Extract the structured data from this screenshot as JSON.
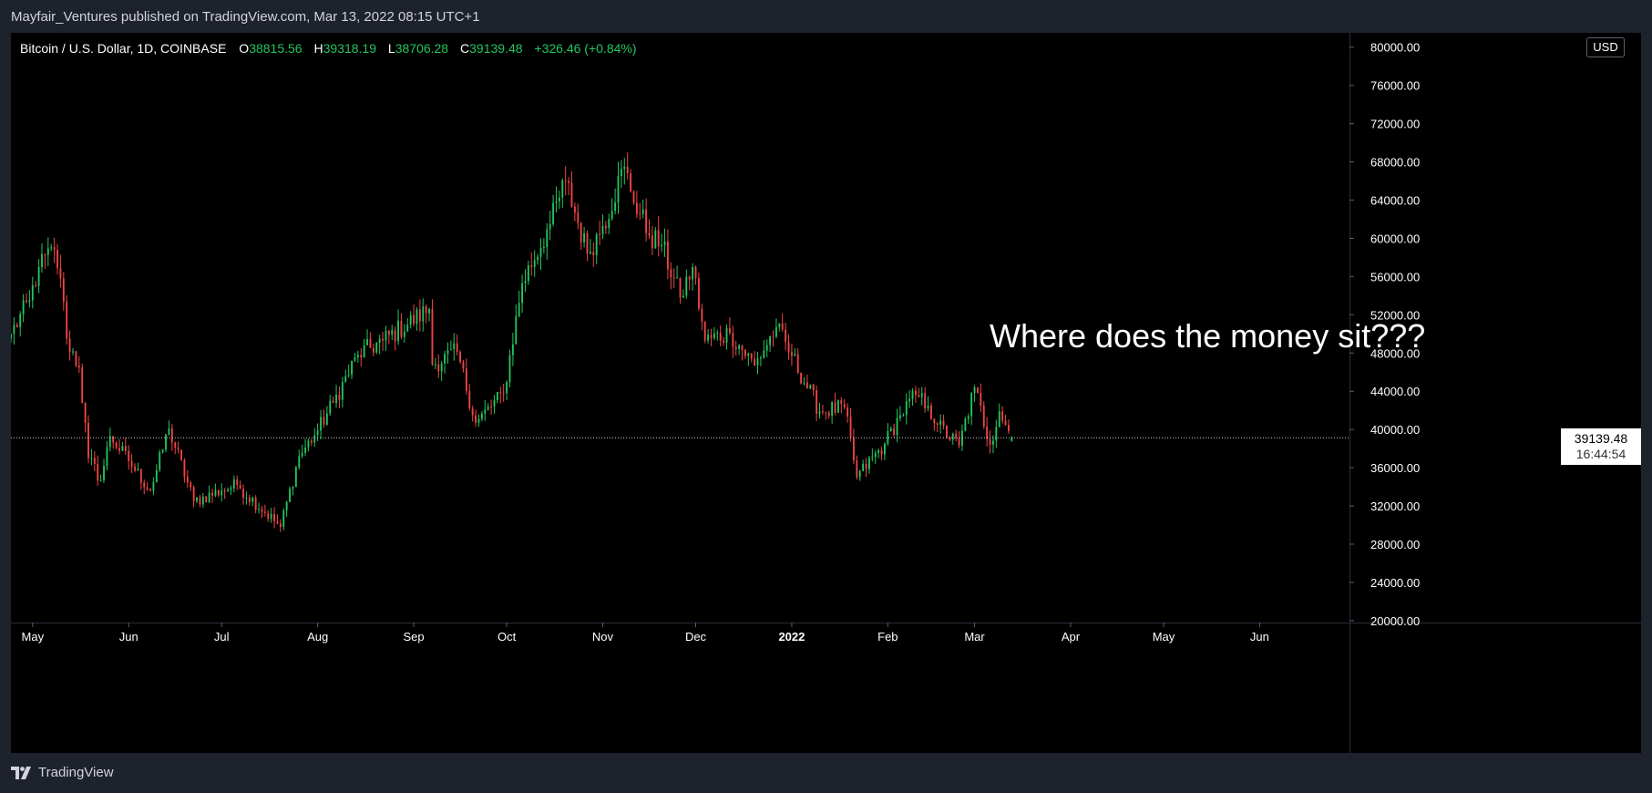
{
  "header": {
    "published": "Mayfair_Ventures published on TradingView.com, Mar 13, 2022 08:15 UTC+1"
  },
  "legend": {
    "symbol": "Bitcoin / U.S. Dollar, 1D, COINBASE",
    "open_label": "O",
    "open": "38815.56",
    "high_label": "H",
    "high": "39318.19",
    "low_label": "L",
    "low": "38706.28",
    "close_label": "C",
    "close": "39139.48",
    "change": "+326.46 (+0.84%)"
  },
  "currency_button": "USD",
  "last_price": {
    "price": "39139.48",
    "countdown": "16:44:54"
  },
  "annotation": "Where does the money sit???",
  "footer": {
    "brand": "TradingView",
    "logo_icon": "tradingview-logo-icon"
  },
  "colors": {
    "up": "#22c55e",
    "down": "#ef4444",
    "background": "#000000",
    "frame": "#1e222d",
    "axis_text": "#ffffff"
  },
  "chart_data": {
    "type": "candlestick",
    "title": "Bitcoin / U.S. Dollar, 1D, COINBASE",
    "y_axis": {
      "ticks": [
        20000,
        24000,
        28000,
        32000,
        36000,
        40000,
        44000,
        48000,
        52000,
        56000,
        60000,
        64000,
        68000,
        72000,
        76000,
        80000
      ],
      "tick_labels": [
        "20000.00",
        "24000.00",
        "28000.00",
        "32000.00",
        "36000.00",
        "40000.00",
        "44000.00",
        "48000.00",
        "52000.00",
        "56000.00",
        "60000.00",
        "64000.00",
        "68000.00",
        "72000.00",
        "76000.00",
        "80000.00"
      ],
      "ylim": [
        19800,
        81500
      ],
      "position": "right"
    },
    "x_axis": {
      "start_date": "2021-04-24",
      "end_date": "2022-06-30",
      "ticks": [
        {
          "date": "2021-05-01",
          "label": "May",
          "bold": false
        },
        {
          "date": "2021-06-01",
          "label": "Jun",
          "bold": false
        },
        {
          "date": "2021-07-01",
          "label": "Jul",
          "bold": false
        },
        {
          "date": "2021-08-01",
          "label": "Aug",
          "bold": false
        },
        {
          "date": "2021-09-01",
          "label": "Sep",
          "bold": false
        },
        {
          "date": "2021-10-01",
          "label": "Oct",
          "bold": false
        },
        {
          "date": "2021-11-01",
          "label": "Nov",
          "bold": false
        },
        {
          "date": "2021-12-01",
          "label": "Dec",
          "bold": false
        },
        {
          "date": "2022-01-01",
          "label": "2022",
          "bold": true
        },
        {
          "date": "2022-02-01",
          "label": "Feb",
          "bold": false
        },
        {
          "date": "2022-03-01",
          "label": "Mar",
          "bold": false
        },
        {
          "date": "2022-04-01",
          "label": "Apr",
          "bold": false
        },
        {
          "date": "2022-05-01",
          "label": "May",
          "bold": false
        },
        {
          "date": "2022-06-01",
          "label": "Jun",
          "bold": false
        }
      ]
    },
    "last_price_line": 39139.48,
    "grid": false,
    "daily_close_anchors": [
      {
        "date": "2021-04-24",
        "close": 50000
      },
      {
        "date": "2021-04-30",
        "close": 53500
      },
      {
        "date": "2021-05-03",
        "close": 57000
      },
      {
        "date": "2021-05-08",
        "close": 58800
      },
      {
        "date": "2021-05-10",
        "close": 55800
      },
      {
        "date": "2021-05-12",
        "close": 49500
      },
      {
        "date": "2021-05-16",
        "close": 46500
      },
      {
        "date": "2021-05-19",
        "close": 37000
      },
      {
        "date": "2021-05-23",
        "close": 34700
      },
      {
        "date": "2021-05-26",
        "close": 39300
      },
      {
        "date": "2021-06-01",
        "close": 36700
      },
      {
        "date": "2021-06-08",
        "close": 33600
      },
      {
        "date": "2021-06-14",
        "close": 40100
      },
      {
        "date": "2021-06-22",
        "close": 32500
      },
      {
        "date": "2021-07-01",
        "close": 33600
      },
      {
        "date": "2021-07-06",
        "close": 34200
      },
      {
        "date": "2021-07-20",
        "close": 29800
      },
      {
        "date": "2021-07-26",
        "close": 37200
      },
      {
        "date": "2021-08-01",
        "close": 39900
      },
      {
        "date": "2021-08-06",
        "close": 42800
      },
      {
        "date": "2021-08-14",
        "close": 47800
      },
      {
        "date": "2021-08-22",
        "close": 49300
      },
      {
        "date": "2021-09-06",
        "close": 52600
      },
      {
        "date": "2021-09-07",
        "close": 46800
      },
      {
        "date": "2021-09-15",
        "close": 48100
      },
      {
        "date": "2021-09-21",
        "close": 40700
      },
      {
        "date": "2021-09-30",
        "close": 43800
      },
      {
        "date": "2021-10-06",
        "close": 55300
      },
      {
        "date": "2021-10-15",
        "close": 61500
      },
      {
        "date": "2021-10-20",
        "close": 66000
      },
      {
        "date": "2021-10-27",
        "close": 58400
      },
      {
        "date": "2021-11-01",
        "close": 61300
      },
      {
        "date": "2021-11-08",
        "close": 67500
      },
      {
        "date": "2021-11-10",
        "close": 64900
      },
      {
        "date": "2021-11-16",
        "close": 60300
      },
      {
        "date": "2021-11-20",
        "close": 59300
      },
      {
        "date": "2021-11-26",
        "close": 53800
      },
      {
        "date": "2021-11-30",
        "close": 57000
      },
      {
        "date": "2021-12-04",
        "close": 49300
      },
      {
        "date": "2021-12-12",
        "close": 50100
      },
      {
        "date": "2021-12-20",
        "close": 46700
      },
      {
        "date": "2021-12-27",
        "close": 50700
      },
      {
        "date": "2022-01-01",
        "close": 47700
      },
      {
        "date": "2022-01-10",
        "close": 41900
      },
      {
        "date": "2022-01-18",
        "close": 42300
      },
      {
        "date": "2022-01-22",
        "close": 35000
      },
      {
        "date": "2022-01-31",
        "close": 38500
      },
      {
        "date": "2022-02-05",
        "close": 41500
      },
      {
        "date": "2022-02-10",
        "close": 43600
      },
      {
        "date": "2022-02-14",
        "close": 42500
      },
      {
        "date": "2022-02-17",
        "close": 40500
      },
      {
        "date": "2022-02-24",
        "close": 38300
      },
      {
        "date": "2022-03-01",
        "close": 44400
      },
      {
        "date": "2022-03-06",
        "close": 38400
      },
      {
        "date": "2022-03-09",
        "close": 41900
      },
      {
        "date": "2022-03-13",
        "close": 39139.48
      }
    ]
  }
}
